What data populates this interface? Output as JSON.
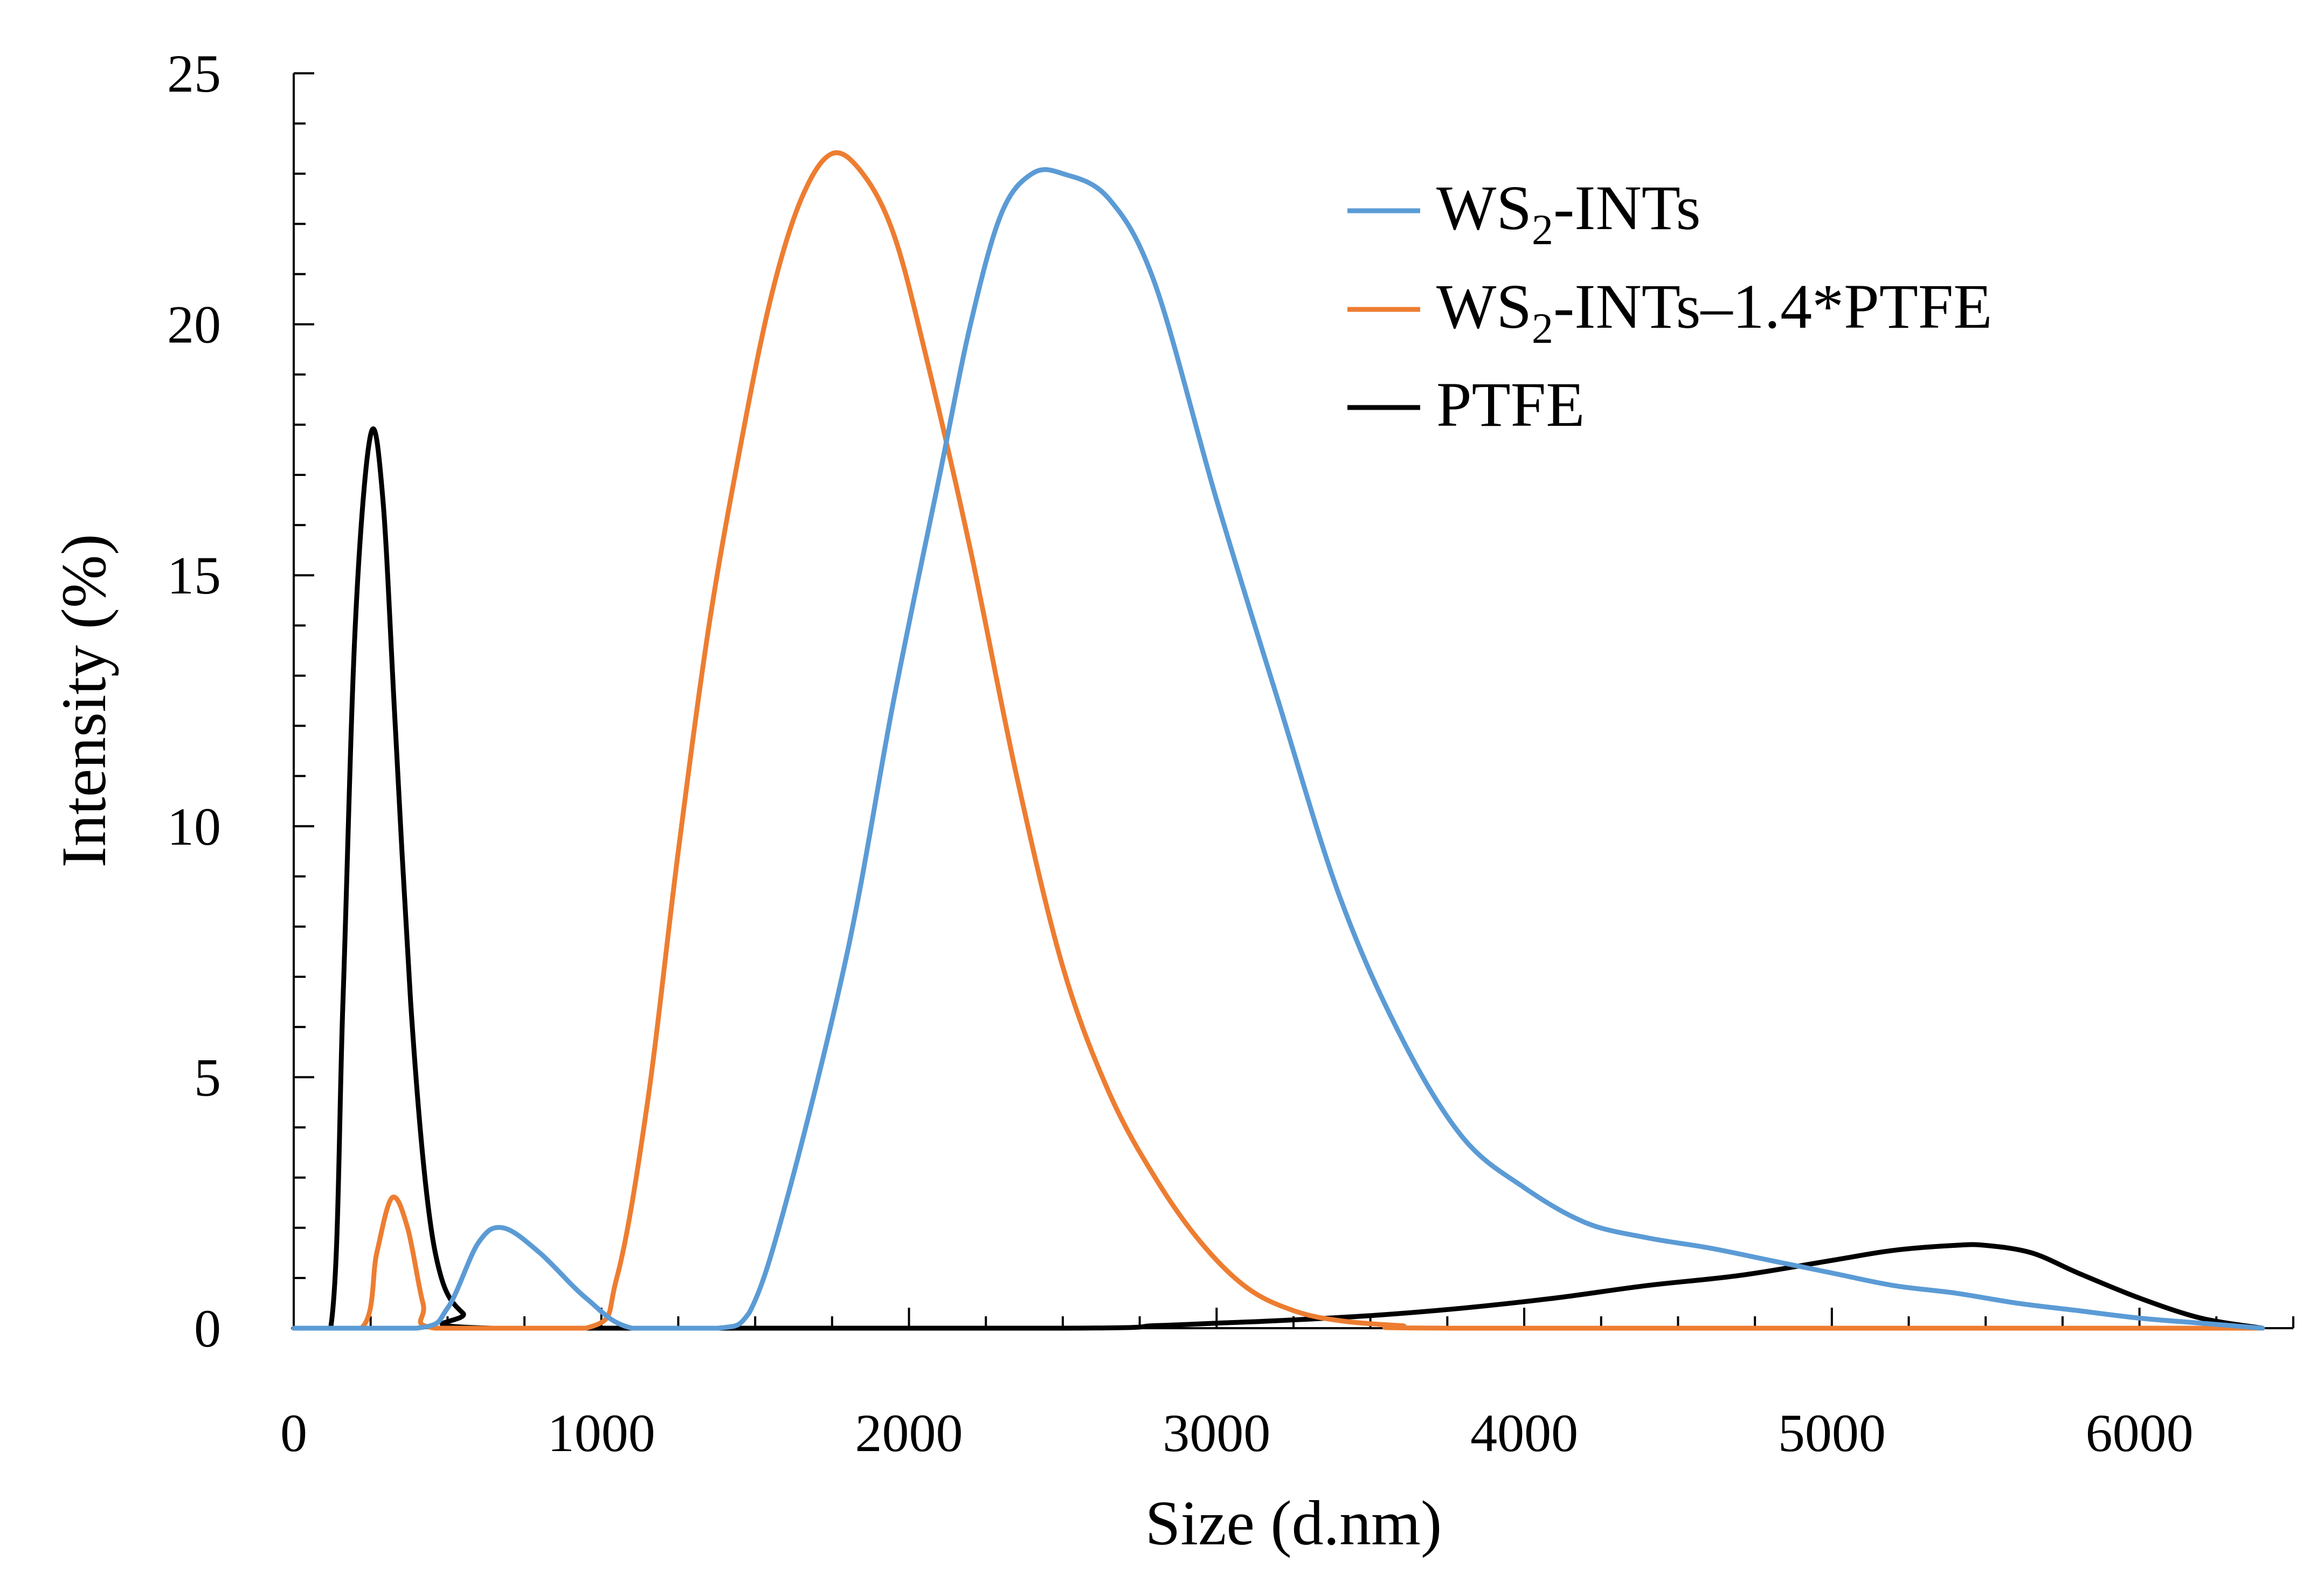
{
  "chart_data": {
    "type": "line",
    "xlabel": "Size (d.nm)",
    "ylabel": "Intensity (%)",
    "xlim": [
      0,
      6500
    ],
    "ylim": [
      0,
      25
    ],
    "x_ticks": [
      "0",
      "1000",
      "2000",
      "3000",
      "4000",
      "5000",
      "6000"
    ],
    "y_ticks": [
      "0",
      "5",
      "10",
      "15",
      "20",
      "25"
    ],
    "legend_position": "top-right",
    "grid": false,
    "series": [
      {
        "name": "WS2-INTs",
        "legend_label": {
          "base": "WS",
          "sub": "2",
          "rest": "-INTs"
        },
        "color": "#5b9bd5",
        "points": [
          [
            0,
            0
          ],
          [
            400,
            0
          ],
          [
            500,
            0.4
          ],
          [
            600,
            1.7
          ],
          [
            680,
            2.0
          ],
          [
            800,
            1.5
          ],
          [
            950,
            0.6
          ],
          [
            1100,
            0
          ],
          [
            1380,
            0
          ],
          [
            1480,
            0.3
          ],
          [
            1600,
            2.5
          ],
          [
            1800,
            7.5
          ],
          [
            1950,
            12.5
          ],
          [
            2100,
            17.0
          ],
          [
            2200,
            20.0
          ],
          [
            2300,
            22.2
          ],
          [
            2400,
            23.0
          ],
          [
            2500,
            23.0
          ],
          [
            2650,
            22.5
          ],
          [
            2800,
            20.8
          ],
          [
            3000,
            16.5
          ],
          [
            3200,
            12.5
          ],
          [
            3400,
            8.6
          ],
          [
            3600,
            5.8
          ],
          [
            3800,
            3.8
          ],
          [
            4000,
            2.8
          ],
          [
            4200,
            2.1
          ],
          [
            4400,
            1.8
          ],
          [
            4600,
            1.6
          ],
          [
            4800,
            1.35
          ],
          [
            5000,
            1.1
          ],
          [
            5200,
            0.85
          ],
          [
            5400,
            0.7
          ],
          [
            5600,
            0.5
          ],
          [
            5800,
            0.35
          ],
          [
            6000,
            0.2
          ],
          [
            6200,
            0.1
          ],
          [
            6400,
            0
          ]
        ]
      },
      {
        "name": "WS2-INTs–1.4*PTFE",
        "legend_label": {
          "base": "WS",
          "sub": "2",
          "rest": "-INTs–1.4*PTFE"
        },
        "color": "#ed7d31",
        "points": [
          [
            0,
            0
          ],
          [
            220,
            0
          ],
          [
            270,
            1.5
          ],
          [
            320,
            2.6
          ],
          [
            370,
            2.0
          ],
          [
            420,
            0.5
          ],
          [
            460,
            0
          ],
          [
            950,
            0
          ],
          [
            1050,
            1.0
          ],
          [
            1150,
            4.5
          ],
          [
            1250,
            9.5
          ],
          [
            1350,
            14.0
          ],
          [
            1450,
            17.5
          ],
          [
            1550,
            20.5
          ],
          [
            1650,
            22.5
          ],
          [
            1750,
            23.4
          ],
          [
            1850,
            23.0
          ],
          [
            1950,
            21.8
          ],
          [
            2050,
            19.5
          ],
          [
            2200,
            15.5
          ],
          [
            2350,
            11.0
          ],
          [
            2500,
            7.2
          ],
          [
            2650,
            4.7
          ],
          [
            2800,
            3.0
          ],
          [
            2950,
            1.7
          ],
          [
            3100,
            0.8
          ],
          [
            3250,
            0.35
          ],
          [
            3400,
            0.15
          ],
          [
            3600,
            0.05
          ],
          [
            3800,
            0
          ],
          [
            6400,
            0
          ]
        ]
      },
      {
        "name": "PTFE",
        "legend_label": {
          "base": "PTFE",
          "sub": "",
          "rest": ""
        },
        "color": "#000000",
        "points": [
          [
            0,
            0
          ],
          [
            120,
            0
          ],
          [
            160,
            6.5
          ],
          [
            200,
            14.0
          ],
          [
            250,
            17.8
          ],
          [
            290,
            16.5
          ],
          [
            330,
            12.0
          ],
          [
            380,
            6.5
          ],
          [
            430,
            2.8
          ],
          [
            480,
            1.0
          ],
          [
            550,
            0.3
          ],
          [
            650,
            0
          ],
          [
            2500,
            0
          ],
          [
            2800,
            0.05
          ],
          [
            3000,
            0.1
          ],
          [
            3200,
            0.15
          ],
          [
            3500,
            0.25
          ],
          [
            3800,
            0.4
          ],
          [
            4100,
            0.6
          ],
          [
            4400,
            0.85
          ],
          [
            4700,
            1.05
          ],
          [
            5000,
            1.35
          ],
          [
            5200,
            1.55
          ],
          [
            5400,
            1.65
          ],
          [
            5500,
            1.65
          ],
          [
            5650,
            1.5
          ],
          [
            5800,
            1.1
          ],
          [
            6000,
            0.6
          ],
          [
            6200,
            0.2
          ],
          [
            6400,
            0
          ]
        ]
      }
    ]
  }
}
